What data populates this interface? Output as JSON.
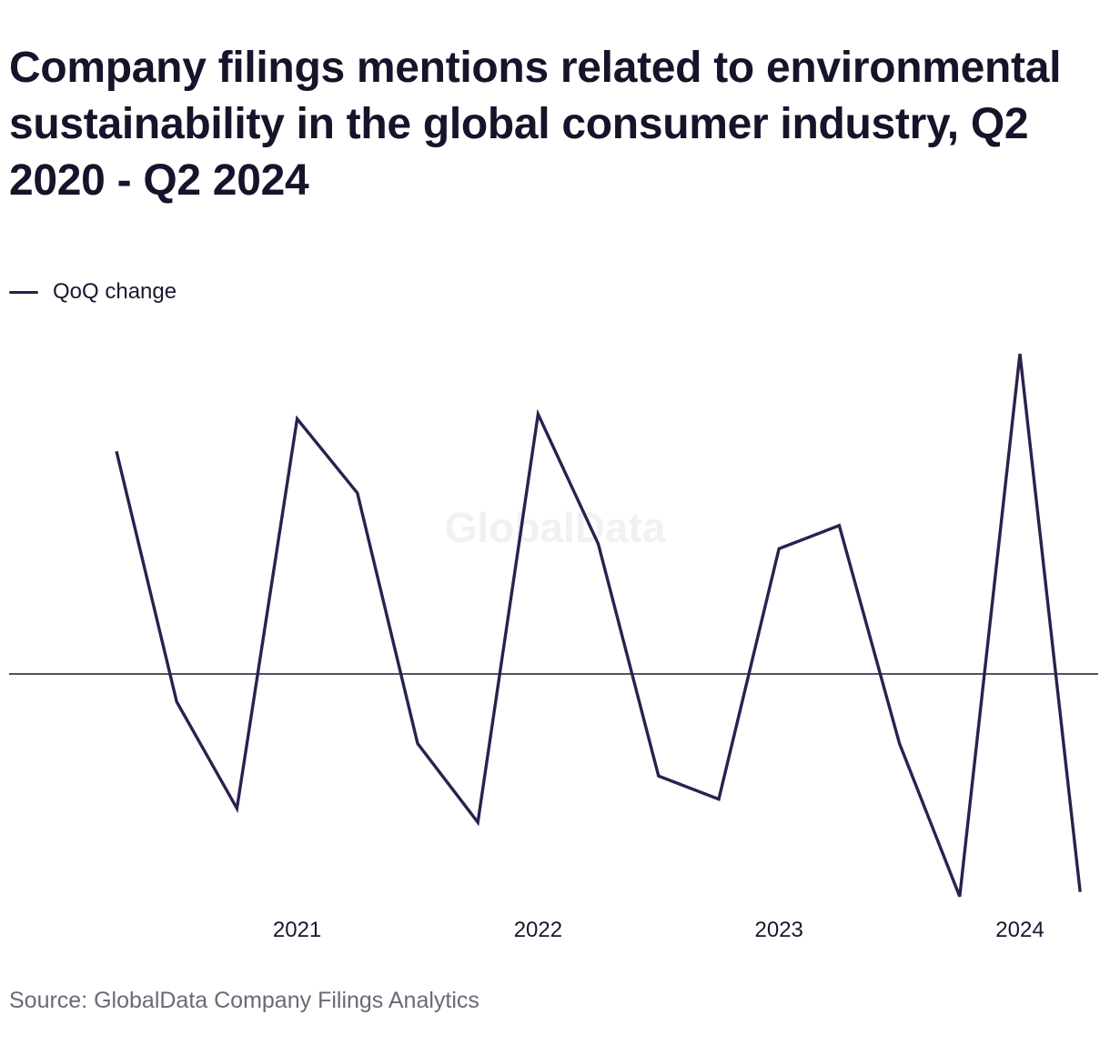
{
  "chart_data": {
    "type": "line",
    "title": "Company filings mentions related to environmental sustainability in the global consumer industry, Q2 2020 - Q2 2024",
    "legend": "top-left",
    "grid": false,
    "series": [
      {
        "name": "QoQ change",
        "color": "#2e1f4f",
        "values": [
          24,
          -3,
          -14.5,
          27.5,
          19.5,
          -7.5,
          -16,
          28,
          14,
          -11,
          -13.5,
          13.5,
          16,
          -7.5,
          -24,
          34.5,
          -23.5
        ]
      }
    ],
    "x": [
      "Q2 2020",
      "Q3 2020",
      "Q4 2020",
      "Q1 2021",
      "Q2 2021",
      "Q3 2021",
      "Q4 2021",
      "Q1 2022",
      "Q2 2022",
      "Q3 2022",
      "Q4 2022",
      "Q1 2023",
      "Q2 2023",
      "Q3 2023",
      "Q4 2023",
      "Q1 2024",
      "Q2 2024"
    ],
    "x_tick_labels": [
      {
        "index": 3,
        "label": "2021"
      },
      {
        "index": 7,
        "label": "2022"
      },
      {
        "index": 11,
        "label": "2023"
      },
      {
        "index": 15,
        "label": "2024"
      }
    ],
    "y_axis_labels_shown": false,
    "baseline": 0,
    "ylim": [
      -26,
      36
    ]
  },
  "watermark": "GlobalData",
  "source": "Source: GlobalData Company Filings Analytics"
}
